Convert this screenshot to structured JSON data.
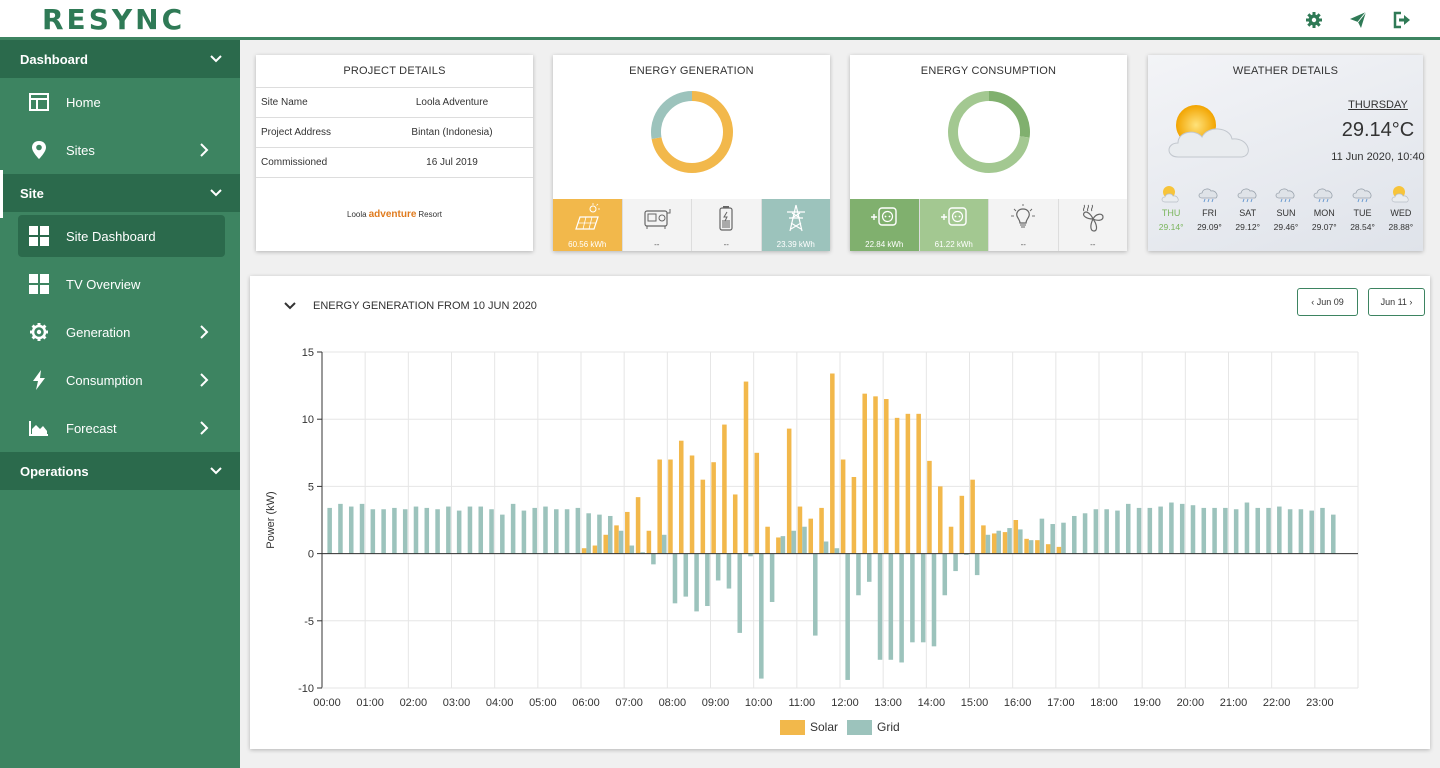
{
  "app": {
    "logo": "RESYNC"
  },
  "topbar": {
    "icons": [
      "gear-icon",
      "send-icon",
      "logout-icon"
    ]
  },
  "sidebar": {
    "sections": [
      {
        "label": "Dashboard",
        "items": [
          {
            "label": "Home",
            "icon": "layout-icon"
          },
          {
            "label": "Sites",
            "icon": "map-pin-icon"
          }
        ]
      },
      {
        "label": "Site",
        "items": [
          {
            "label": "Site Dashboard",
            "icon": "grid-icon"
          },
          {
            "label": "TV Overview",
            "icon": "grid-icon"
          },
          {
            "label": "Generation",
            "icon": "cog-icon"
          },
          {
            "label": "Consumption",
            "icon": "bolt-icon"
          },
          {
            "label": "Forecast",
            "icon": "area-chart-icon"
          }
        ]
      },
      {
        "label": "Operations",
        "items": []
      }
    ]
  },
  "project": {
    "title": "PROJECT DETAILS",
    "rows": [
      {
        "key": "Site Name",
        "value": "Loola Adventure"
      },
      {
        "key": "Project Address",
        "value": "Bintan (Indonesia)"
      },
      {
        "key": "Commissioned",
        "value": "16 Jul 2019"
      }
    ],
    "logo": {
      "pre": "Loola",
      "mid": "adventure",
      "post": "Resort"
    }
  },
  "generation": {
    "title": "ENERGY GENERATION",
    "donut": [
      {
        "name": "Solar",
        "value": 60.56,
        "color": "#f2b84b"
      },
      {
        "name": "Grid",
        "value": 23.39,
        "color": "#9cc3bc"
      }
    ],
    "tiles": [
      {
        "icon": "solar-panel-icon",
        "value": "60.56 kWh"
      },
      {
        "icon": "generator-icon",
        "value": "--"
      },
      {
        "icon": "battery-icon",
        "value": "--"
      },
      {
        "icon": "power-tower-icon",
        "value": "23.39 kWh"
      }
    ]
  },
  "consumption": {
    "title": "ENERGY CONSUMPTION",
    "donut": [
      {
        "name": "Load 1",
        "value": 22.84,
        "color": "#80b06e"
      },
      {
        "name": "Load 2",
        "value": 61.22,
        "color": "#a3c891"
      }
    ],
    "tiles": [
      {
        "icon": "plug-icon",
        "value": "22.84 kWh"
      },
      {
        "icon": "plug-icon",
        "value": "61.22 kWh"
      },
      {
        "icon": "bulb-icon",
        "value": "--"
      },
      {
        "icon": "fan-icon",
        "value": "--"
      }
    ]
  },
  "weather": {
    "title": "WEATHER DETAILS",
    "day": "THURSDAY",
    "temp": "29.14°C",
    "datetime": "11 Jun 2020, 10:40",
    "forecast": [
      {
        "day": "THU",
        "temp": "29.14°",
        "icon": "sun-cloud-icon"
      },
      {
        "day": "FRI",
        "temp": "29.09°",
        "icon": "cloud-rain-icon"
      },
      {
        "day": "SAT",
        "temp": "29.12°",
        "icon": "cloud-rain-icon"
      },
      {
        "day": "SUN",
        "temp": "29.46°",
        "icon": "cloud-rain-icon"
      },
      {
        "day": "MON",
        "temp": "29.07°",
        "icon": "cloud-rain-icon"
      },
      {
        "day": "TUE",
        "temp": "28.54°",
        "icon": "cloud-rain-icon"
      },
      {
        "day": "WED",
        "temp": "28.88°",
        "icon": "sun-cloud-icon"
      }
    ]
  },
  "panel": {
    "title": "ENERGY GENERATION FROM 10 JUN 2020",
    "prev_label": "‹ Jun 09",
    "next_label": "Jun 11 ›"
  },
  "chart_data": {
    "type": "bar",
    "ylabel": "Power (kW)",
    "ylim": [
      -10,
      15
    ],
    "yticks": [
      15,
      10,
      5,
      0,
      -5,
      -10
    ],
    "grid": true,
    "legend_position": "bottom",
    "xtick_labels": [
      "00:00",
      "01:00",
      "02:00",
      "03:00",
      "04:00",
      "05:00",
      "06:00",
      "07:00",
      "08:00",
      "09:00",
      "10:00",
      "11:00",
      "12:00",
      "13:00",
      "14:00",
      "15:00",
      "16:00",
      "17:00",
      "18:00",
      "19:00",
      "20:00",
      "21:00",
      "22:00",
      "23:00"
    ],
    "interval_minutes": 15,
    "series": [
      {
        "name": "Solar",
        "color": "#f2b84b",
        "values": [
          0,
          0,
          0,
          0,
          0,
          0,
          0,
          0,
          0,
          0,
          0,
          0,
          0,
          0,
          0,
          0,
          0,
          0,
          0,
          0,
          0,
          0,
          0,
          0,
          0.4,
          0.6,
          1.4,
          2.1,
          3.1,
          4.2,
          1.7,
          7.0,
          7.0,
          8.4,
          7.3,
          5.5,
          6.8,
          9.6,
          4.4,
          12.8,
          7.5,
          2.0,
          1.2,
          9.3,
          3.5,
          2.6,
          3.4,
          13.4,
          7.0,
          5.7,
          11.9,
          11.7,
          11.5,
          10.1,
          10.4,
          10.4,
          6.9,
          5.0,
          2.0,
          4.3,
          5.5,
          2.1,
          1.5,
          1.6,
          2.5,
          1.1,
          1.0,
          0.7,
          0.5,
          0,
          0,
          0,
          0,
          0,
          0,
          0,
          0,
          0,
          0,
          0,
          0,
          0,
          0,
          0,
          0,
          0,
          0,
          0,
          0,
          0,
          0,
          0,
          0,
          0,
          0,
          0
        ]
      },
      {
        "name": "Grid",
        "color": "#9cc3bc",
        "values": [
          3.4,
          3.7,
          3.5,
          3.7,
          3.3,
          3.3,
          3.4,
          3.3,
          3.5,
          3.4,
          3.3,
          3.5,
          3.2,
          3.5,
          3.5,
          3.3,
          2.9,
          3.7,
          3.2,
          3.4,
          3.5,
          3.3,
          3.3,
          3.4,
          3.0,
          2.9,
          2.8,
          1.7,
          0.6,
          0.1,
          -0.8,
          1.4,
          -3.7,
          -3.2,
          -4.3,
          -3.9,
          -2.0,
          -2.6,
          -5.9,
          -0.2,
          -9.3,
          -3.6,
          1.3,
          1.7,
          2.0,
          -6.1,
          0.9,
          0.4,
          -9.4,
          -3.1,
          -2.1,
          -7.9,
          -7.9,
          -8.1,
          -6.6,
          -6.6,
          -6.9,
          -3.1,
          -1.3,
          -0.1,
          -1.6,
          1.4,
          1.7,
          1.9,
          1.8,
          1.0,
          2.6,
          2.2,
          2.3,
          2.8,
          3.0,
          3.3,
          3.3,
          3.2,
          3.7,
          3.4,
          3.4,
          3.5,
          3.8,
          3.7,
          3.6,
          3.4,
          3.4,
          3.4,
          3.3,
          3.8,
          3.4,
          3.4,
          3.5,
          3.3,
          3.3,
          3.2,
          3.4,
          2.9
        ]
      }
    ]
  }
}
